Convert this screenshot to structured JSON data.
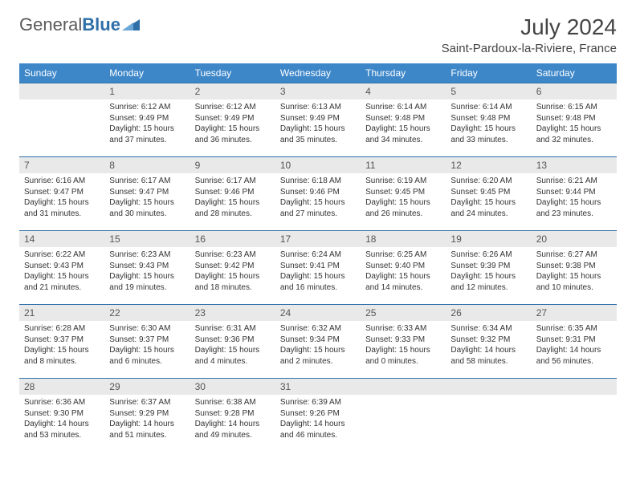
{
  "logo": {
    "part1": "General",
    "part2": "Blue"
  },
  "title": "July 2024",
  "location": "Saint-Pardoux-la-Riviere, France",
  "colors": {
    "header_bg": "#3d87c9",
    "header_text": "#ffffff",
    "rule": "#2f6fa8",
    "band_bg": "#e9e9e9",
    "body_bg": "#ffffff",
    "logo_gray": "#5a5a5a",
    "logo_blue": "#2f6fa8"
  },
  "day_labels": [
    "Sunday",
    "Monday",
    "Tuesday",
    "Wednesday",
    "Thursday",
    "Friday",
    "Saturday"
  ],
  "weeks": [
    [
      {
        "n": "",
        "sunrise": "",
        "sunset": "",
        "daylight": ""
      },
      {
        "n": "1",
        "sunrise": "Sunrise: 6:12 AM",
        "sunset": "Sunset: 9:49 PM",
        "daylight": "Daylight: 15 hours and 37 minutes."
      },
      {
        "n": "2",
        "sunrise": "Sunrise: 6:12 AM",
        "sunset": "Sunset: 9:49 PM",
        "daylight": "Daylight: 15 hours and 36 minutes."
      },
      {
        "n": "3",
        "sunrise": "Sunrise: 6:13 AM",
        "sunset": "Sunset: 9:49 PM",
        "daylight": "Daylight: 15 hours and 35 minutes."
      },
      {
        "n": "4",
        "sunrise": "Sunrise: 6:14 AM",
        "sunset": "Sunset: 9:48 PM",
        "daylight": "Daylight: 15 hours and 34 minutes."
      },
      {
        "n": "5",
        "sunrise": "Sunrise: 6:14 AM",
        "sunset": "Sunset: 9:48 PM",
        "daylight": "Daylight: 15 hours and 33 minutes."
      },
      {
        "n": "6",
        "sunrise": "Sunrise: 6:15 AM",
        "sunset": "Sunset: 9:48 PM",
        "daylight": "Daylight: 15 hours and 32 minutes."
      }
    ],
    [
      {
        "n": "7",
        "sunrise": "Sunrise: 6:16 AM",
        "sunset": "Sunset: 9:47 PM",
        "daylight": "Daylight: 15 hours and 31 minutes."
      },
      {
        "n": "8",
        "sunrise": "Sunrise: 6:17 AM",
        "sunset": "Sunset: 9:47 PM",
        "daylight": "Daylight: 15 hours and 30 minutes."
      },
      {
        "n": "9",
        "sunrise": "Sunrise: 6:17 AM",
        "sunset": "Sunset: 9:46 PM",
        "daylight": "Daylight: 15 hours and 28 minutes."
      },
      {
        "n": "10",
        "sunrise": "Sunrise: 6:18 AM",
        "sunset": "Sunset: 9:46 PM",
        "daylight": "Daylight: 15 hours and 27 minutes."
      },
      {
        "n": "11",
        "sunrise": "Sunrise: 6:19 AM",
        "sunset": "Sunset: 9:45 PM",
        "daylight": "Daylight: 15 hours and 26 minutes."
      },
      {
        "n": "12",
        "sunrise": "Sunrise: 6:20 AM",
        "sunset": "Sunset: 9:45 PM",
        "daylight": "Daylight: 15 hours and 24 minutes."
      },
      {
        "n": "13",
        "sunrise": "Sunrise: 6:21 AM",
        "sunset": "Sunset: 9:44 PM",
        "daylight": "Daylight: 15 hours and 23 minutes."
      }
    ],
    [
      {
        "n": "14",
        "sunrise": "Sunrise: 6:22 AM",
        "sunset": "Sunset: 9:43 PM",
        "daylight": "Daylight: 15 hours and 21 minutes."
      },
      {
        "n": "15",
        "sunrise": "Sunrise: 6:23 AM",
        "sunset": "Sunset: 9:43 PM",
        "daylight": "Daylight: 15 hours and 19 minutes."
      },
      {
        "n": "16",
        "sunrise": "Sunrise: 6:23 AM",
        "sunset": "Sunset: 9:42 PM",
        "daylight": "Daylight: 15 hours and 18 minutes."
      },
      {
        "n": "17",
        "sunrise": "Sunrise: 6:24 AM",
        "sunset": "Sunset: 9:41 PM",
        "daylight": "Daylight: 15 hours and 16 minutes."
      },
      {
        "n": "18",
        "sunrise": "Sunrise: 6:25 AM",
        "sunset": "Sunset: 9:40 PM",
        "daylight": "Daylight: 15 hours and 14 minutes."
      },
      {
        "n": "19",
        "sunrise": "Sunrise: 6:26 AM",
        "sunset": "Sunset: 9:39 PM",
        "daylight": "Daylight: 15 hours and 12 minutes."
      },
      {
        "n": "20",
        "sunrise": "Sunrise: 6:27 AM",
        "sunset": "Sunset: 9:38 PM",
        "daylight": "Daylight: 15 hours and 10 minutes."
      }
    ],
    [
      {
        "n": "21",
        "sunrise": "Sunrise: 6:28 AM",
        "sunset": "Sunset: 9:37 PM",
        "daylight": "Daylight: 15 hours and 8 minutes."
      },
      {
        "n": "22",
        "sunrise": "Sunrise: 6:30 AM",
        "sunset": "Sunset: 9:37 PM",
        "daylight": "Daylight: 15 hours and 6 minutes."
      },
      {
        "n": "23",
        "sunrise": "Sunrise: 6:31 AM",
        "sunset": "Sunset: 9:36 PM",
        "daylight": "Daylight: 15 hours and 4 minutes."
      },
      {
        "n": "24",
        "sunrise": "Sunrise: 6:32 AM",
        "sunset": "Sunset: 9:34 PM",
        "daylight": "Daylight: 15 hours and 2 minutes."
      },
      {
        "n": "25",
        "sunrise": "Sunrise: 6:33 AM",
        "sunset": "Sunset: 9:33 PM",
        "daylight": "Daylight: 15 hours and 0 minutes."
      },
      {
        "n": "26",
        "sunrise": "Sunrise: 6:34 AM",
        "sunset": "Sunset: 9:32 PM",
        "daylight": "Daylight: 14 hours and 58 minutes."
      },
      {
        "n": "27",
        "sunrise": "Sunrise: 6:35 AM",
        "sunset": "Sunset: 9:31 PM",
        "daylight": "Daylight: 14 hours and 56 minutes."
      }
    ],
    [
      {
        "n": "28",
        "sunrise": "Sunrise: 6:36 AM",
        "sunset": "Sunset: 9:30 PM",
        "daylight": "Daylight: 14 hours and 53 minutes."
      },
      {
        "n": "29",
        "sunrise": "Sunrise: 6:37 AM",
        "sunset": "Sunset: 9:29 PM",
        "daylight": "Daylight: 14 hours and 51 minutes."
      },
      {
        "n": "30",
        "sunrise": "Sunrise: 6:38 AM",
        "sunset": "Sunset: 9:28 PM",
        "daylight": "Daylight: 14 hours and 49 minutes."
      },
      {
        "n": "31",
        "sunrise": "Sunrise: 6:39 AM",
        "sunset": "Sunset: 9:26 PM",
        "daylight": "Daylight: 14 hours and 46 minutes."
      },
      {
        "n": "",
        "sunrise": "",
        "sunset": "",
        "daylight": ""
      },
      {
        "n": "",
        "sunrise": "",
        "sunset": "",
        "daylight": ""
      },
      {
        "n": "",
        "sunrise": "",
        "sunset": "",
        "daylight": ""
      }
    ]
  ]
}
